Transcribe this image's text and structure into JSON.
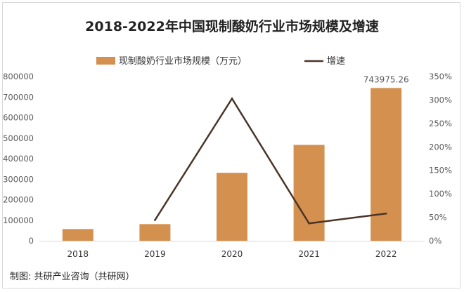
{
  "chart_data": {
    "type": "bar",
    "title": "2018-2022年中国现制酸奶行业市场规模及增速",
    "categories": [
      "2018",
      "2019",
      "2020",
      "2021",
      "2022"
    ],
    "series": [
      {
        "name": "现制酸奶行业市场规模（万元）",
        "type": "bar",
        "axis": "left",
        "color": "#d4904f",
        "values": [
          57000,
          81000,
          331000,
          467000,
          743975.26
        ]
      },
      {
        "name": "增速",
        "type": "line",
        "axis": "right",
        "color": "#4a3528",
        "values": [
          null,
          44,
          303,
          37,
          58
        ]
      }
    ],
    "data_labels": [
      {
        "category": "2022",
        "series": 0,
        "text": "743975.26"
      }
    ],
    "y_left": {
      "ylim": [
        0,
        800000
      ],
      "ticks": [
        "0",
        "100000",
        "200000",
        "300000",
        "400000",
        "500000",
        "600000",
        "700000",
        "800000"
      ]
    },
    "y_right": {
      "ylim": [
        0,
        350
      ],
      "unit": "%",
      "ticks": [
        "0%",
        "50%",
        "100%",
        "150%",
        "200%",
        "250%",
        "300%",
        "350%"
      ]
    },
    "grid": false,
    "legend_position": "top"
  },
  "source": "制图: 共研产业咨询（共研网）"
}
